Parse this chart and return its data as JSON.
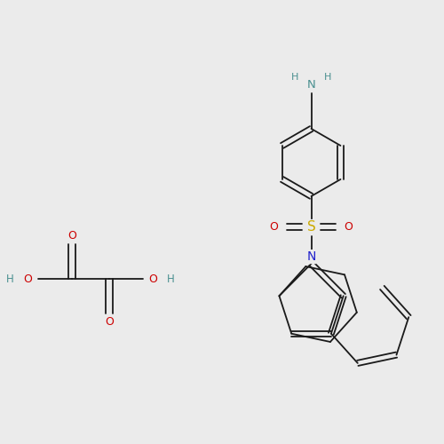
{
  "background_color": "#ebebeb",
  "bond_color": "#1a1a1a",
  "atom_colors": {
    "N_amine": "#4a9090",
    "N_ring": "#2020cc",
    "O": "#cc0000",
    "S": "#ccaa00",
    "C": "#1a1a1a",
    "H": "#4a9090"
  },
  "figsize": [
    5.0,
    5.0
  ],
  "dpi": 100
}
